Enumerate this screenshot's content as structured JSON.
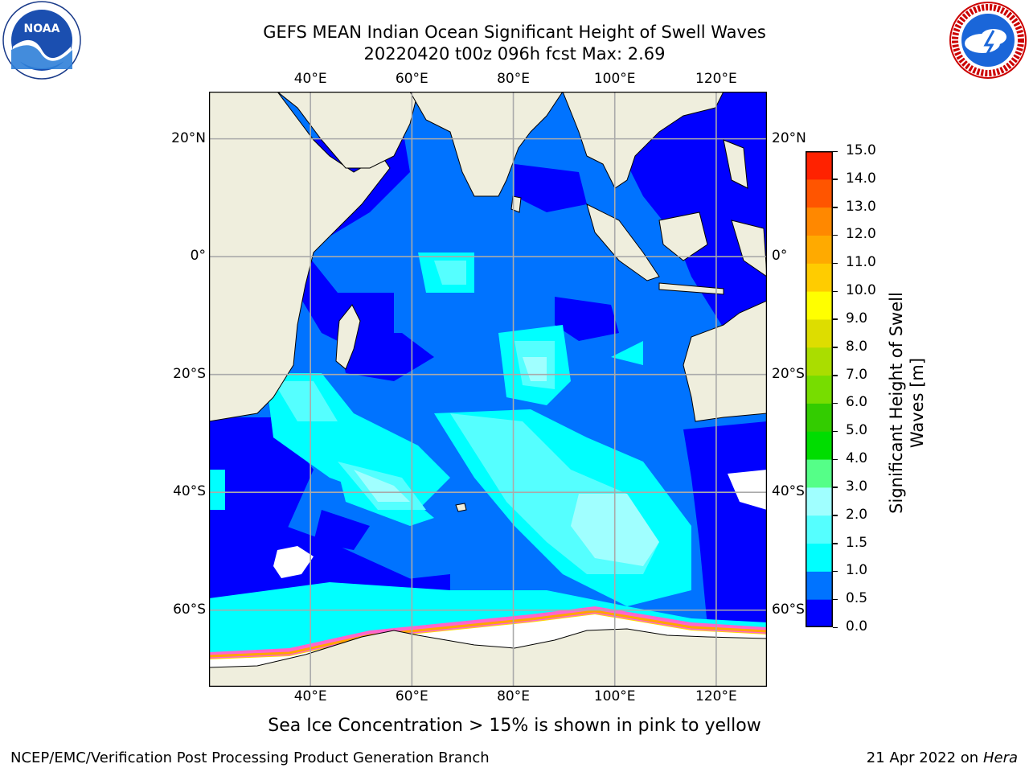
{
  "title": {
    "line1": "GEFS MEAN Indian Ocean Significant Height of Swell Waves",
    "line2": "20220420 t00z 096h fcst   Max: 2.69"
  },
  "map": {
    "lon_range": [
      20,
      130
    ],
    "lat_range": [
      -73,
      28
    ],
    "lon_ticks": [
      "40°E",
      "60°E",
      "80°E",
      "100°E",
      "120°E"
    ],
    "lon_values": [
      40,
      60,
      80,
      100,
      120
    ],
    "lat_ticks": [
      "20°N",
      "0°",
      "20°S",
      "40°S",
      "60°S"
    ],
    "lat_values": [
      20,
      0,
      -20,
      -40,
      -60
    ],
    "grid": true,
    "land_color": "#efeedd",
    "sea_ice_colors": [
      "#ff66cc",
      "#ffa500",
      "#ffd700"
    ]
  },
  "colorbar": {
    "label_line1": "Significant Height of Swell",
    "label_line2": "Waves [m]",
    "ticks": [
      "0.0",
      "0.5",
      "1.0",
      "1.5",
      "2.0",
      "3.0",
      "4.0",
      "5.0",
      "6.0",
      "7.0",
      "8.0",
      "9.0",
      "10.0",
      "11.0",
      "12.0",
      "13.0",
      "14.0",
      "15.0"
    ],
    "colors": [
      "#0000ff",
      "#0073ff",
      "#00ffff",
      "#55ffff",
      "#a0ffff",
      "#55ff88",
      "#00dd00",
      "#33cc00",
      "#77dd00",
      "#aadd00",
      "#dddd00",
      "#ffff00",
      "#ffcc00",
      "#ffaa00",
      "#ff8800",
      "#ff5500",
      "#ff2200"
    ]
  },
  "caption": "Sea Ice Concentration > 15% is shown in pink to yellow",
  "footer": {
    "left": "NCEP/EMC/Verification Post Processing Product Generation Branch",
    "right_prefix": "21 Apr 2022 on ",
    "right_host": "Hera"
  },
  "logos": {
    "left_name": "NOAA",
    "right_name": "NATIONAL WEATHER SERVICE"
  }
}
